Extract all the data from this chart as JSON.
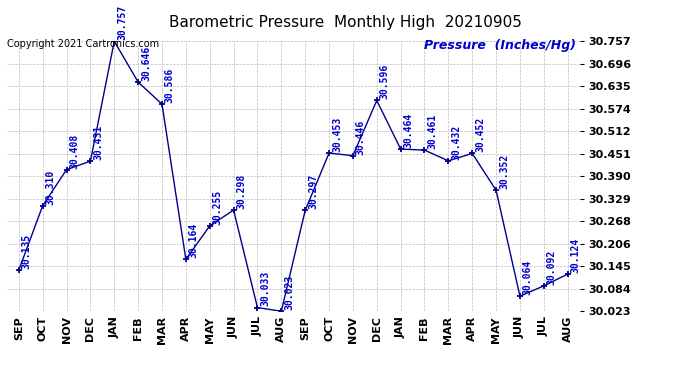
{
  "title": "Barometric Pressure  Monthly High  20210905",
  "ylabel": "Pressure  (Inches/Hg)",
  "copyright": "Copyright 2021 Cartronics.com",
  "months": [
    "SEP",
    "OCT",
    "NOV",
    "DEC",
    "JAN",
    "FEB",
    "MAR",
    "APR",
    "MAY",
    "JUN",
    "JUL",
    "AUG",
    "SEP",
    "OCT",
    "NOV",
    "DEC",
    "JAN",
    "FEB",
    "MAR",
    "APR",
    "MAY",
    "JUN",
    "JUL",
    "AUG"
  ],
  "values": [
    30.135,
    30.31,
    30.408,
    30.431,
    30.757,
    30.646,
    30.586,
    30.164,
    30.255,
    30.298,
    30.033,
    30.023,
    30.297,
    30.453,
    30.446,
    30.596,
    30.464,
    30.461,
    30.432,
    30.452,
    30.352,
    30.064,
    30.092,
    30.124
  ],
  "line_color": "#00008b",
  "marker_color": "#00008b",
  "grid_color": "#bbbbbb",
  "bg_color": "#ffffff",
  "title_color": "#000000",
  "label_color": "#0000cc",
  "ytick_color": "#000000",
  "copyright_color": "#000000",
  "ytick_values": [
    30.023,
    30.084,
    30.145,
    30.206,
    30.268,
    30.329,
    30.39,
    30.451,
    30.512,
    30.574,
    30.635,
    30.696,
    30.757
  ],
  "ymin": 30.023,
  "ymax": 30.757,
  "data_label_fontsize": 7,
  "title_fontsize": 11,
  "ytick_fontsize": 8,
  "xtick_fontsize": 8,
  "ylabel_fontsize": 9,
  "copyright_fontsize": 7
}
